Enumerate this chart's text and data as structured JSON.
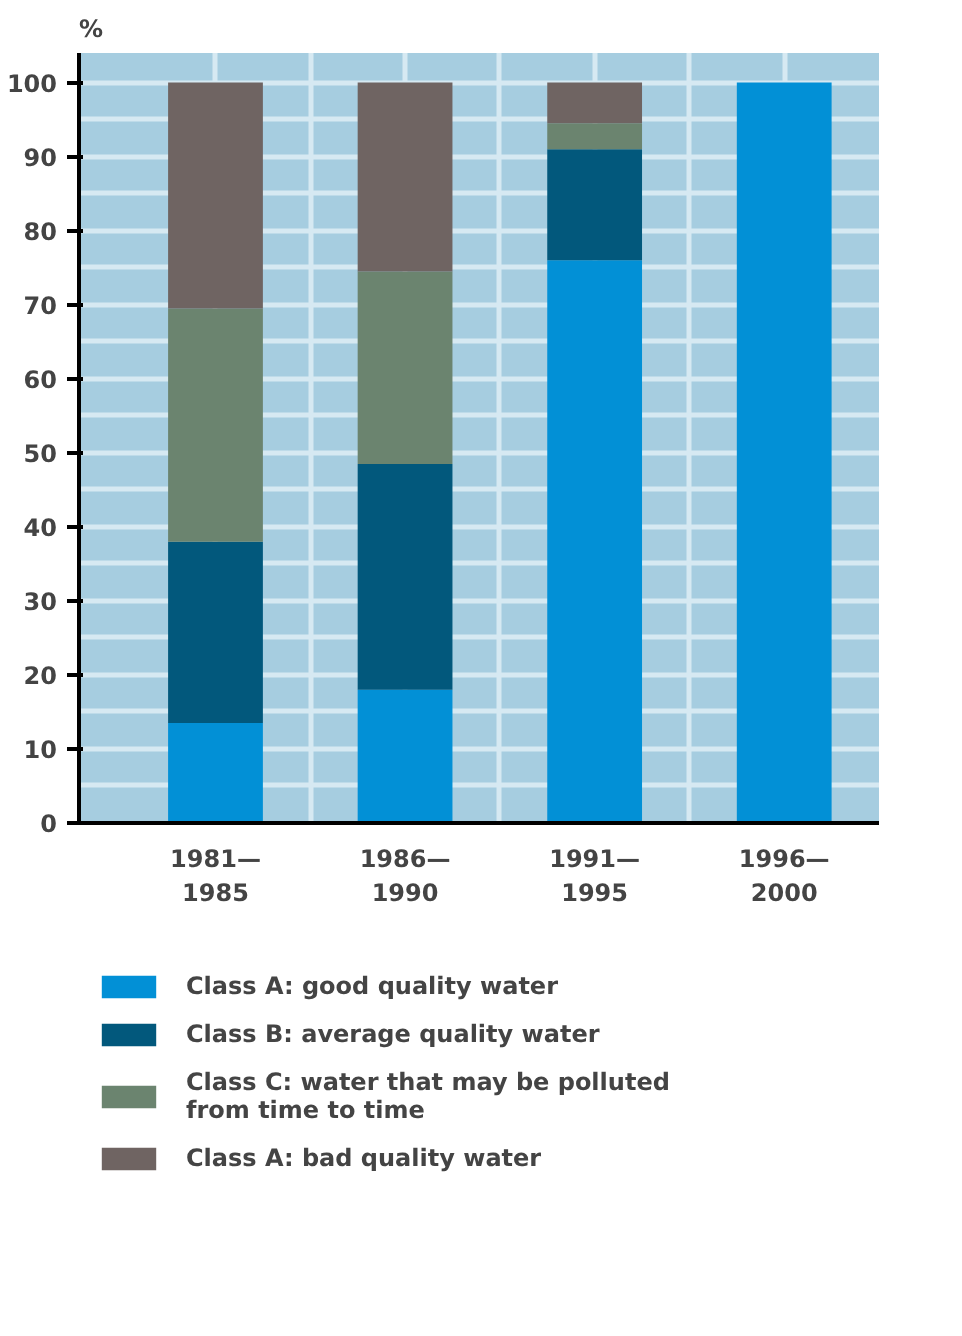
{
  "chart_data": {
    "type": "bar",
    "stacked": true,
    "ylabel": "%",
    "categories": [
      "1981—1985",
      "1986—1990",
      "1991—1995",
      "1996—2000"
    ],
    "series": [
      {
        "name": "Class A: good quality water",
        "color": "#0290d6",
        "values": [
          13.5,
          18,
          76,
          100
        ]
      },
      {
        "name": "Class B: average quality water",
        "color": "#02587c",
        "values": [
          24.5,
          30.5,
          15,
          0
        ]
      },
      {
        "name": "Class C: water that may be polluted from time to time",
        "color": "#6b846f",
        "values": [
          31.5,
          26,
          3.5,
          0
        ]
      },
      {
        "name": "Class A: bad quality water",
        "color": "#6f6462",
        "values": [
          30.5,
          25.5,
          5.5,
          0
        ]
      }
    ],
    "ylim": [
      0,
      104
    ],
    "yticks": [
      0,
      10,
      20,
      30,
      40,
      50,
      60,
      70,
      80,
      90,
      100
    ],
    "grid": true,
    "legend": "bottom"
  }
}
